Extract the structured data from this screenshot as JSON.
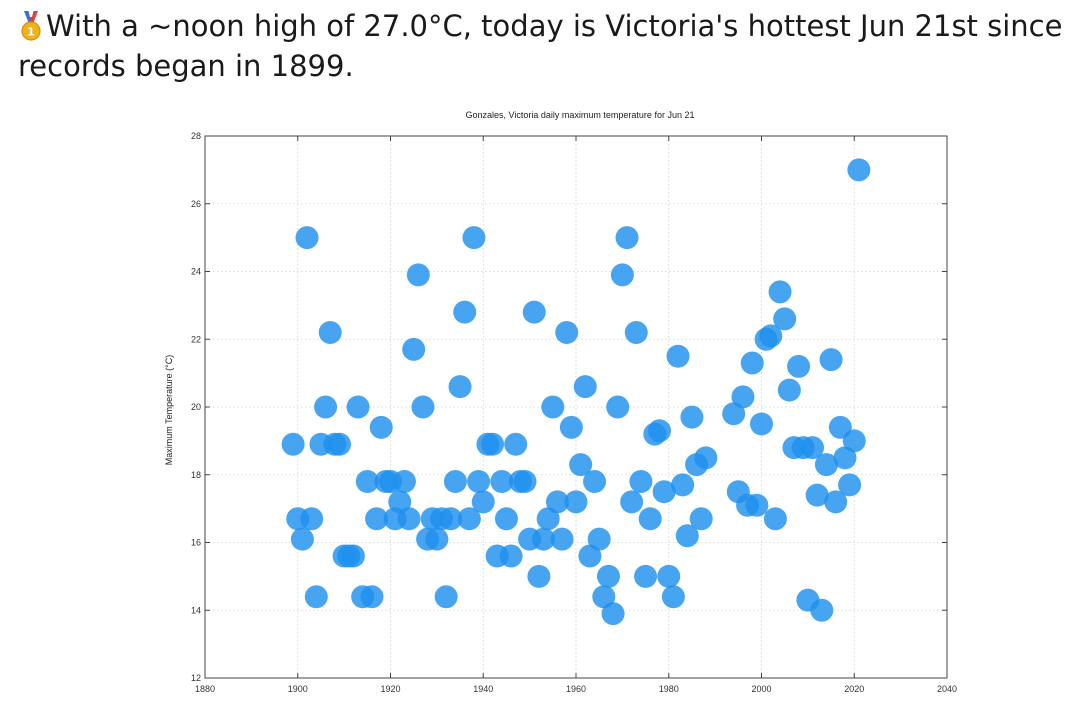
{
  "post": {
    "headline_line1": "With a ~noon high of 27.0°C, today is Victoria's hottest Jun 21st since",
    "headline_line2": "records began in 1899.",
    "icon": "first-place-medal-icon"
  },
  "chart_data": {
    "type": "scatter",
    "title": "Gonzales, Victoria daily maximum temperature for Jun 21",
    "xlabel": "",
    "ylabel": "Maximum Temperature (°C)",
    "xlim": [
      1880,
      2040
    ],
    "ylim": [
      12,
      28
    ],
    "xticks": [
      1880,
      1900,
      1920,
      1940,
      1960,
      1980,
      2000,
      2020,
      2040
    ],
    "yticks": [
      12,
      14,
      16,
      18,
      20,
      22,
      24,
      26,
      28
    ],
    "grid": true,
    "marker_color": "#1e90ee",
    "x": [
      1899,
      1900,
      1901,
      1903,
      1902,
      1904,
      1905,
      1906,
      1907,
      1908,
      1909,
      1910,
      1911,
      1912,
      1913,
      1914,
      1915,
      1916,
      1917,
      1918,
      1919,
      1920,
      1921,
      1922,
      1923,
      1924,
      1925,
      1926,
      1927,
      1928,
      1929,
      1930,
      1931,
      1932,
      1933,
      1934,
      1935,
      1936,
      1937,
      1938,
      1939,
      1940,
      1941,
      1942,
      1943,
      1944,
      1945,
      1946,
      1947,
      1948,
      1949,
      1950,
      1951,
      1952,
      1953,
      1954,
      1955,
      1956,
      1957,
      1958,
      1959,
      1960,
      1961,
      1962,
      1963,
      1964,
      1965,
      1966,
      1967,
      1968,
      1969,
      1970,
      1971,
      1972,
      1973,
      1974,
      1975,
      1976,
      1977,
      1978,
      1979,
      1980,
      1981,
      1982,
      1983,
      1984,
      1985,
      1986,
      1987,
      1988,
      1994,
      1995,
      1996,
      1997,
      1998,
      1999,
      2000,
      2001,
      2002,
      2003,
      2004,
      2005,
      2006,
      2007,
      2008,
      2009,
      2010,
      2011,
      2012,
      2013,
      2014,
      2015,
      2016,
      2017,
      2018,
      2019,
      2020,
      2021
    ],
    "y": [
      18.9,
      16.7,
      16.1,
      16.7,
      25.0,
      14.4,
      18.9,
      20.0,
      22.2,
      18.9,
      18.9,
      15.6,
      15.6,
      15.6,
      20.0,
      14.4,
      17.8,
      14.4,
      16.7,
      19.4,
      17.8,
      17.8,
      16.7,
      17.2,
      17.8,
      16.7,
      21.7,
      23.9,
      20.0,
      16.1,
      16.7,
      16.1,
      16.7,
      14.4,
      16.7,
      17.8,
      20.6,
      22.8,
      16.7,
      25.0,
      17.8,
      17.2,
      18.9,
      18.9,
      15.6,
      17.8,
      16.7,
      15.6,
      18.9,
      17.8,
      17.8,
      16.1,
      22.8,
      15.0,
      16.1,
      16.7,
      20.0,
      17.2,
      16.1,
      22.2,
      19.4,
      17.2,
      18.3,
      20.6,
      15.6,
      17.8,
      16.1,
      14.4,
      15.0,
      13.9,
      20.0,
      23.9,
      25.0,
      17.2,
      22.2,
      17.8,
      15.0,
      16.7,
      19.2,
      19.3,
      17.5,
      15.0,
      14.4,
      21.5,
      17.7,
      16.2,
      19.7,
      18.3,
      16.7,
      18.5,
      19.8,
      17.5,
      20.3,
      17.1,
      21.3,
      17.1,
      19.5,
      22.0,
      22.1,
      16.7,
      23.4,
      22.6,
      20.5,
      18.8,
      21.2,
      18.8,
      14.3,
      18.8,
      17.4,
      14.0,
      18.3,
      21.4,
      17.2,
      19.4,
      18.5,
      17.7,
      19.0,
      27.0
    ]
  }
}
